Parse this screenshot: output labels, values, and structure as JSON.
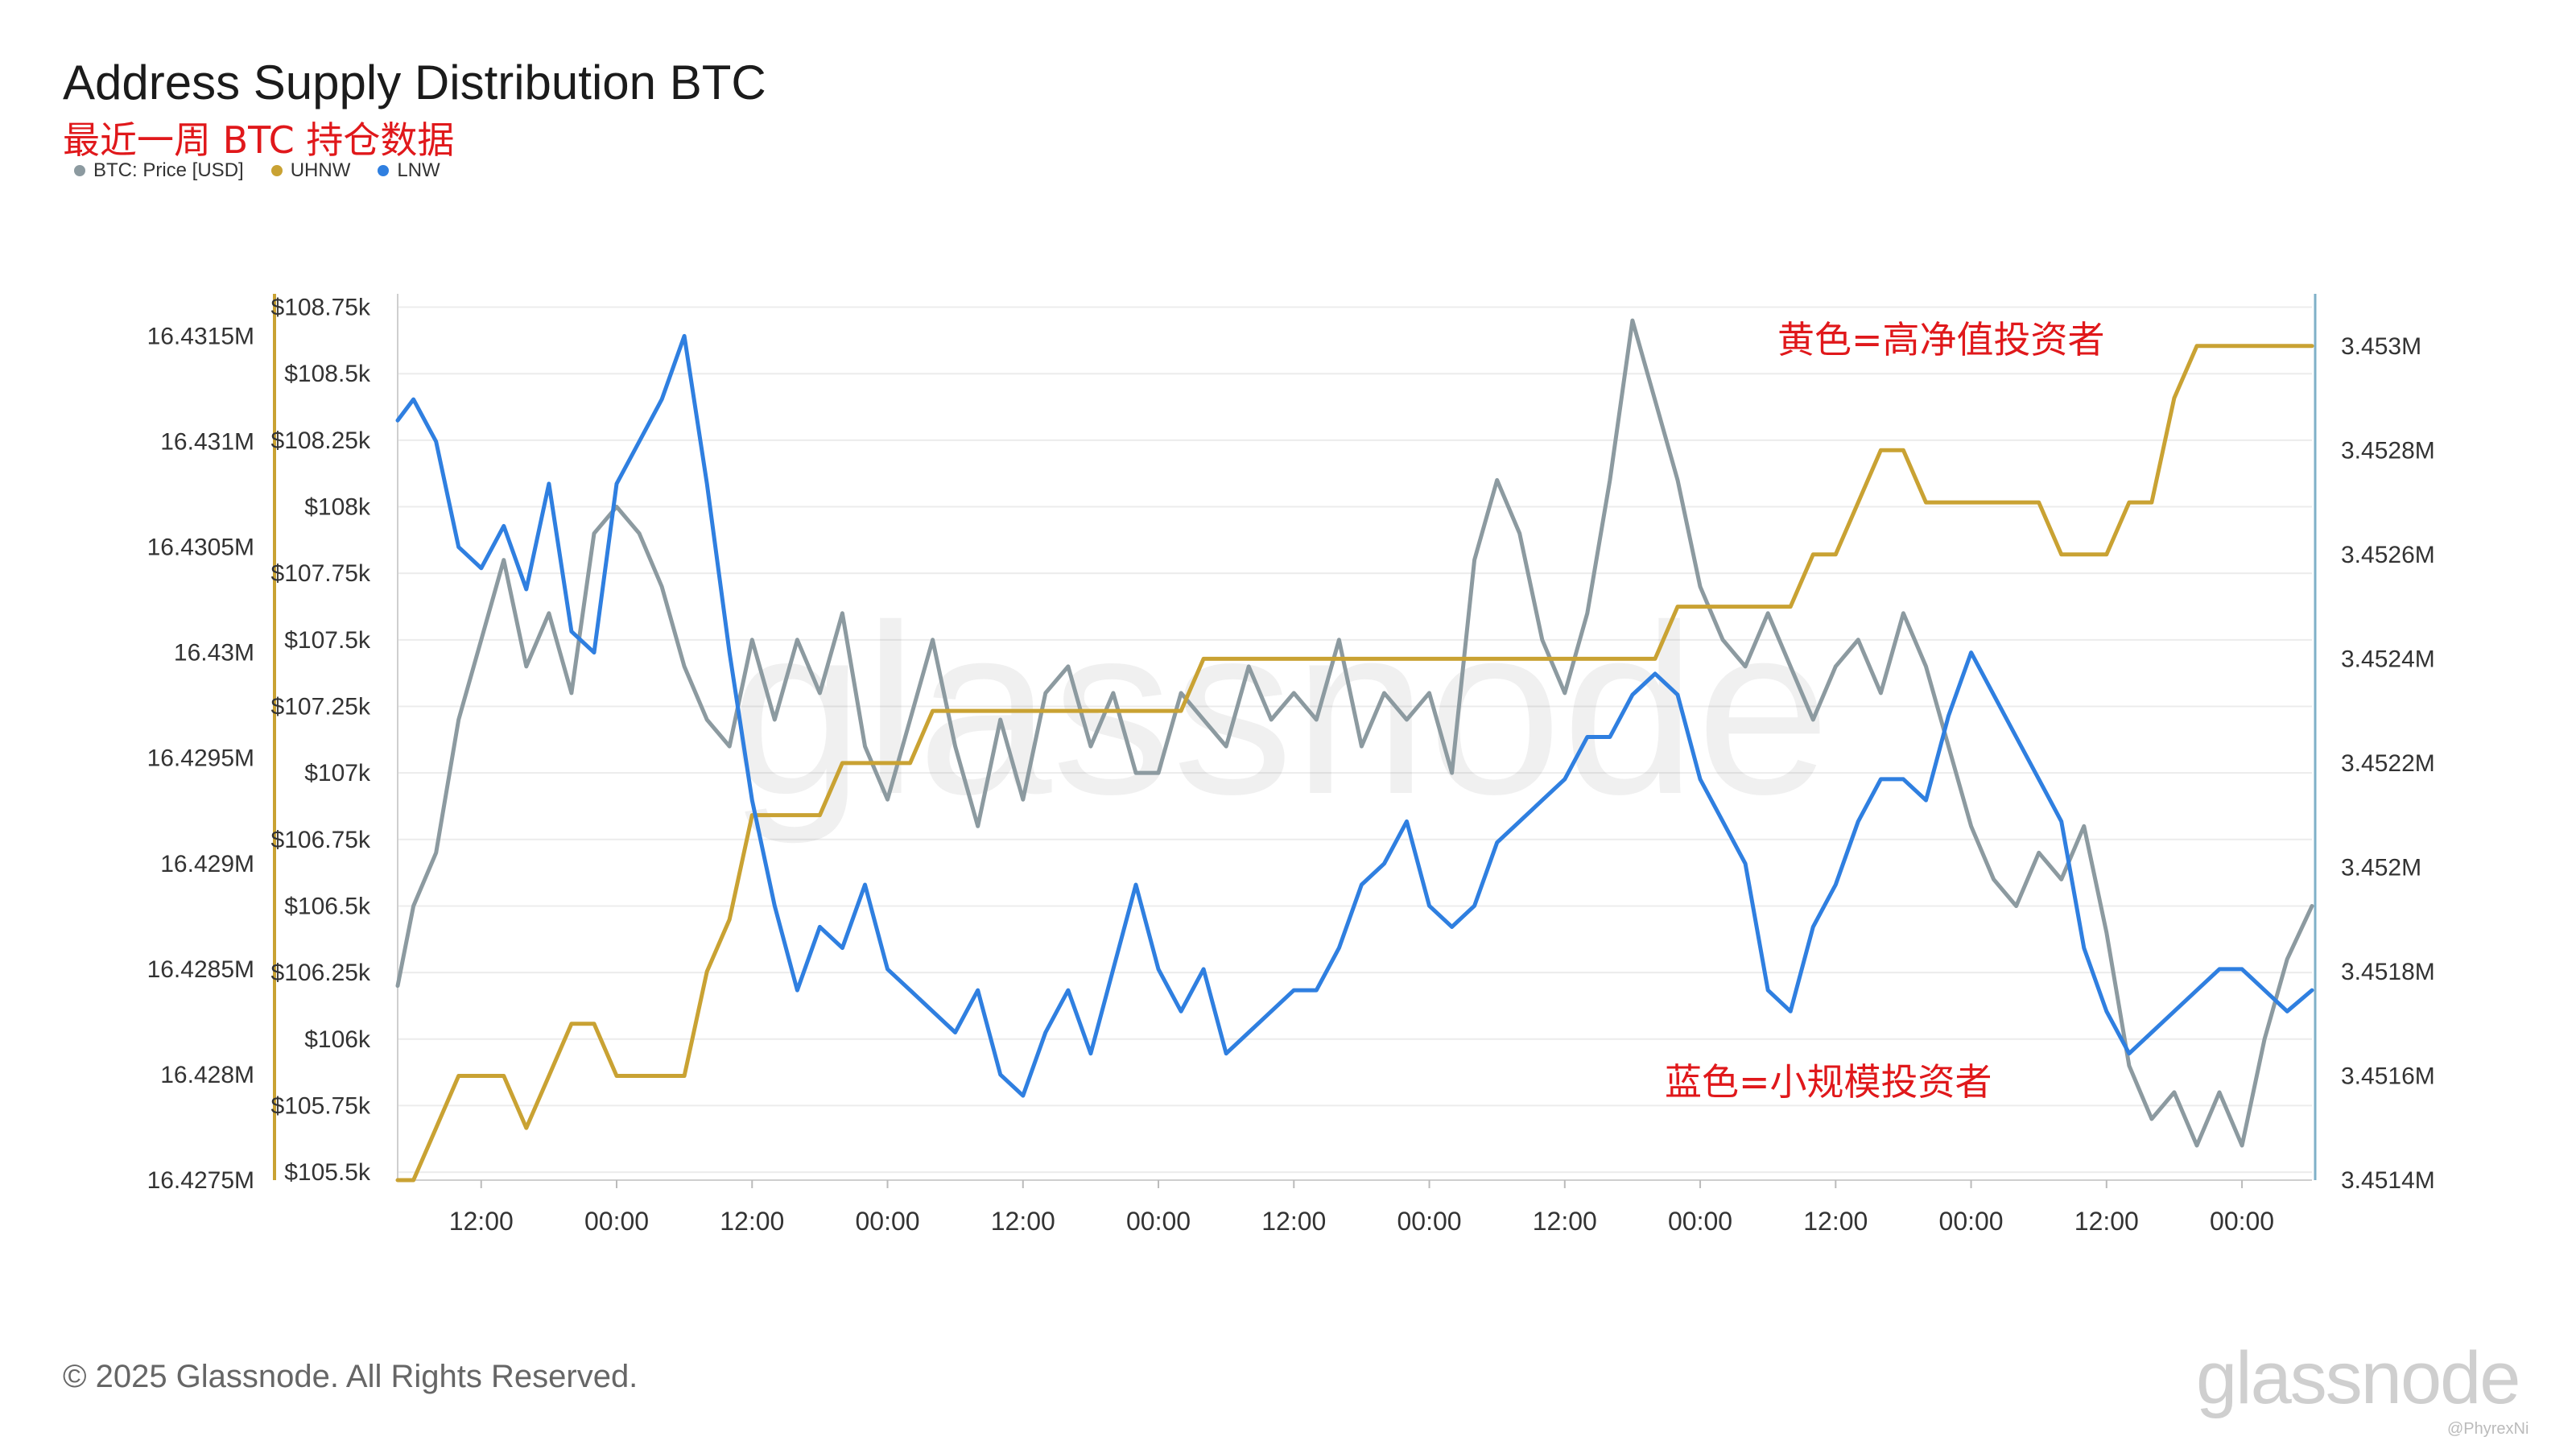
{
  "header": {
    "title": "Address Supply Distribution BTC",
    "subtitle": "最近一周 BTC 持仓数据"
  },
  "legend": [
    {
      "label": "BTC: Price [USD]",
      "color": "#8c9aa0"
    },
    {
      "label": "UHNW",
      "color": "#c9a233"
    },
    {
      "label": "LNW",
      "color": "#2f7fe0"
    }
  ],
  "annotations": {
    "yellow_note": "黄色=高净值投资者",
    "blue_note": "蓝色=小规模投资者"
  },
  "watermark": "glassnode",
  "footer": {
    "copyright": "© 2025 Glassnode. All Rights Reserved.",
    "brand": "glassnode",
    "handle": "@PhyrexNi"
  },
  "colors": {
    "price": "#8c9aa0",
    "uhnw": "#c9a233",
    "lnw": "#2f7fe0",
    "axis_right": "#7fb0c8",
    "grid": "#ececec",
    "note": "#e0181b"
  },
  "chart_data": {
    "type": "line",
    "x_ticks": [
      "12:00",
      "00:00",
      "12:00",
      "00:00",
      "12:00",
      "00:00",
      "12:00",
      "00:00",
      "12:00",
      "00:00",
      "12:00",
      "00:00",
      "12:00",
      "00:00"
    ],
    "x_tick_hours": [
      12,
      24,
      36,
      48,
      60,
      72,
      84,
      96,
      108,
      120,
      132,
      144,
      156,
      168
    ],
    "x_range_hours": [
      4.6,
      174.2
    ],
    "axes": {
      "lnw": {
        "side": "left-outer",
        "ticks": [
          "16.4275M",
          "16.428M",
          "16.4285M",
          "16.429M",
          "16.4295M",
          "16.43M",
          "16.4305M",
          "16.431M",
          "16.4315M"
        ],
        "range": [
          16.4275,
          16.4317
        ]
      },
      "price": {
        "side": "left-inner",
        "ticks": [
          "$105.5k",
          "$105.75k",
          "$106k",
          "$106.25k",
          "$106.5k",
          "$106.75k",
          "$107k",
          "$107.25k",
          "$107.5k",
          "$107.75k",
          "$108k",
          "$108.25k",
          "$108.5k",
          "$108.75k"
        ],
        "range": [
          105.47,
          108.8
        ]
      },
      "uhnw": {
        "side": "right",
        "ticks": [
          "3.4514M",
          "3.4516M",
          "3.4518M",
          "3.452M",
          "3.4522M",
          "3.4524M",
          "3.4526M",
          "3.4528M",
          "3.453M"
        ],
        "range": [
          3.4514,
          3.4531
        ]
      }
    },
    "series": [
      {
        "name": "BTC: Price [USD]",
        "axis": "price",
        "x": [
          4.6,
          6,
          8,
          10,
          12,
          14,
          16,
          18,
          20,
          22,
          24,
          26,
          28,
          30,
          32,
          34,
          36,
          38,
          40,
          42,
          44,
          46,
          48,
          50,
          52,
          54,
          56,
          58,
          60,
          62,
          64,
          66,
          68,
          70,
          72,
          74,
          76,
          78,
          80,
          82,
          84,
          86,
          88,
          90,
          92,
          94,
          96,
          98,
          100,
          102,
          104,
          106,
          108,
          110,
          112,
          114,
          116,
          118,
          120,
          122,
          124,
          126,
          128,
          130,
          132,
          134,
          136,
          138,
          140,
          142,
          144,
          146,
          148,
          150,
          152,
          154,
          156,
          158,
          160,
          162,
          164,
          166,
          168,
          170,
          172,
          174.2
        ],
        "values": [
          106.2,
          106.5,
          106.7,
          107.2,
          107.5,
          107.8,
          107.4,
          107.6,
          107.3,
          107.9,
          108.0,
          107.9,
          107.7,
          107.4,
          107.2,
          107.1,
          107.5,
          107.2,
          107.5,
          107.3,
          107.6,
          107.1,
          106.9,
          107.2,
          107.5,
          107.1,
          106.8,
          107.2,
          106.9,
          107.3,
          107.4,
          107.1,
          107.3,
          107.0,
          107.0,
          107.3,
          107.2,
          107.1,
          107.4,
          107.2,
          107.3,
          107.2,
          107.5,
          107.1,
          107.3,
          107.2,
          107.3,
          107.0,
          107.8,
          108.1,
          107.9,
          107.5,
          107.3,
          107.6,
          108.1,
          108.7,
          108.4,
          108.1,
          107.7,
          107.5,
          107.4,
          107.6,
          107.4,
          107.2,
          107.4,
          107.5,
          107.3,
          107.6,
          107.4,
          107.1,
          106.8,
          106.6,
          106.5,
          106.7,
          106.6,
          106.8,
          106.4,
          105.9,
          105.7,
          105.8,
          105.6,
          105.8,
          105.6,
          106.0,
          106.3,
          106.5
        ]
      },
      {
        "name": "UHNW",
        "axis": "uhnw",
        "x": [
          4.6,
          6,
          8,
          10,
          12,
          14,
          16,
          18,
          20,
          22,
          24,
          26,
          28,
          30,
          32,
          34,
          36,
          38,
          40,
          42,
          44,
          46,
          48,
          50,
          52,
          54,
          56,
          58,
          60,
          62,
          64,
          66,
          68,
          70,
          72,
          74,
          76,
          78,
          80,
          82,
          84,
          86,
          88,
          90,
          92,
          94,
          96,
          98,
          100,
          102,
          104,
          106,
          108,
          110,
          112,
          114,
          116,
          118,
          120,
          122,
          124,
          126,
          128,
          130,
          132,
          134,
          136,
          138,
          140,
          142,
          144,
          146,
          148,
          150,
          152,
          154,
          156,
          158,
          160,
          162,
          164,
          166,
          168,
          170,
          172,
          174.2
        ],
        "values": [
          3.4514,
          3.4514,
          3.4515,
          3.4516,
          3.4516,
          3.4516,
          3.4515,
          3.4516,
          3.4517,
          3.4517,
          3.4516,
          3.4516,
          3.4516,
          3.4516,
          3.4518,
          3.4519,
          3.4521,
          3.4521,
          3.4521,
          3.4521,
          3.4522,
          3.4522,
          3.4522,
          3.4522,
          3.4523,
          3.4523,
          3.4523,
          3.4523,
          3.4523,
          3.4523,
          3.4523,
          3.4523,
          3.4523,
          3.4523,
          3.4523,
          3.4523,
          3.4524,
          3.4524,
          3.4524,
          3.4524,
          3.4524,
          3.4524,
          3.4524,
          3.4524,
          3.4524,
          3.4524,
          3.4524,
          3.4524,
          3.4524,
          3.4524,
          3.4524,
          3.4524,
          3.4524,
          3.4524,
          3.4524,
          3.4524,
          3.4524,
          3.4525,
          3.4525,
          3.4525,
          3.4525,
          3.4525,
          3.4525,
          3.4526,
          3.4526,
          3.4527,
          3.4528,
          3.4528,
          3.4527,
          3.4527,
          3.4527,
          3.4527,
          3.4527,
          3.4527,
          3.4526,
          3.4526,
          3.4526,
          3.4527,
          3.4527,
          3.4529,
          3.453,
          3.453,
          3.453,
          3.453,
          3.453,
          3.453
        ]
      },
      {
        "name": "LNW",
        "axis": "lnw",
        "x": [
          4.6,
          6,
          8,
          10,
          12,
          14,
          16,
          18,
          20,
          22,
          24,
          26,
          28,
          30,
          32,
          34,
          36,
          38,
          40,
          42,
          44,
          46,
          48,
          50,
          52,
          54,
          56,
          58,
          60,
          62,
          64,
          66,
          68,
          70,
          72,
          74,
          76,
          78,
          80,
          82,
          84,
          86,
          88,
          90,
          92,
          94,
          96,
          98,
          100,
          102,
          104,
          106,
          108,
          110,
          112,
          114,
          116,
          118,
          120,
          122,
          124,
          126,
          128,
          130,
          132,
          134,
          136,
          138,
          140,
          142,
          144,
          146,
          148,
          150,
          152,
          154,
          156,
          158,
          160,
          162,
          164,
          166,
          168,
          170,
          172,
          174.2
        ],
        "values": [
          16.4311,
          16.4312,
          16.431,
          16.4305,
          16.4304,
          16.4306,
          16.4303,
          16.4308,
          16.4301,
          16.43,
          16.4308,
          16.431,
          16.4312,
          16.4315,
          16.4308,
          16.43,
          16.4293,
          16.4288,
          16.4284,
          16.4287,
          16.4286,
          16.4289,
          16.4285,
          16.4284,
          16.4283,
          16.4282,
          16.4284,
          16.428,
          16.4279,
          16.4282,
          16.4284,
          16.4281,
          16.4285,
          16.4289,
          16.4285,
          16.4283,
          16.4285,
          16.4281,
          16.4282,
          16.4283,
          16.4284,
          16.4284,
          16.4286,
          16.4289,
          16.429,
          16.4292,
          16.4288,
          16.4287,
          16.4288,
          16.4291,
          16.4292,
          16.4293,
          16.4294,
          16.4296,
          16.4296,
          16.4298,
          16.4299,
          16.4298,
          16.4294,
          16.4292,
          16.429,
          16.4284,
          16.4283,
          16.4287,
          16.4289,
          16.4292,
          16.4294,
          16.4294,
          16.4293,
          16.4297,
          16.43,
          16.4298,
          16.4296,
          16.4294,
          16.4292,
          16.4286,
          16.4283,
          16.4281,
          16.4282,
          16.4283,
          16.4284,
          16.4285,
          16.4285,
          16.4284,
          16.4283,
          16.4284
        ]
      }
    ]
  }
}
